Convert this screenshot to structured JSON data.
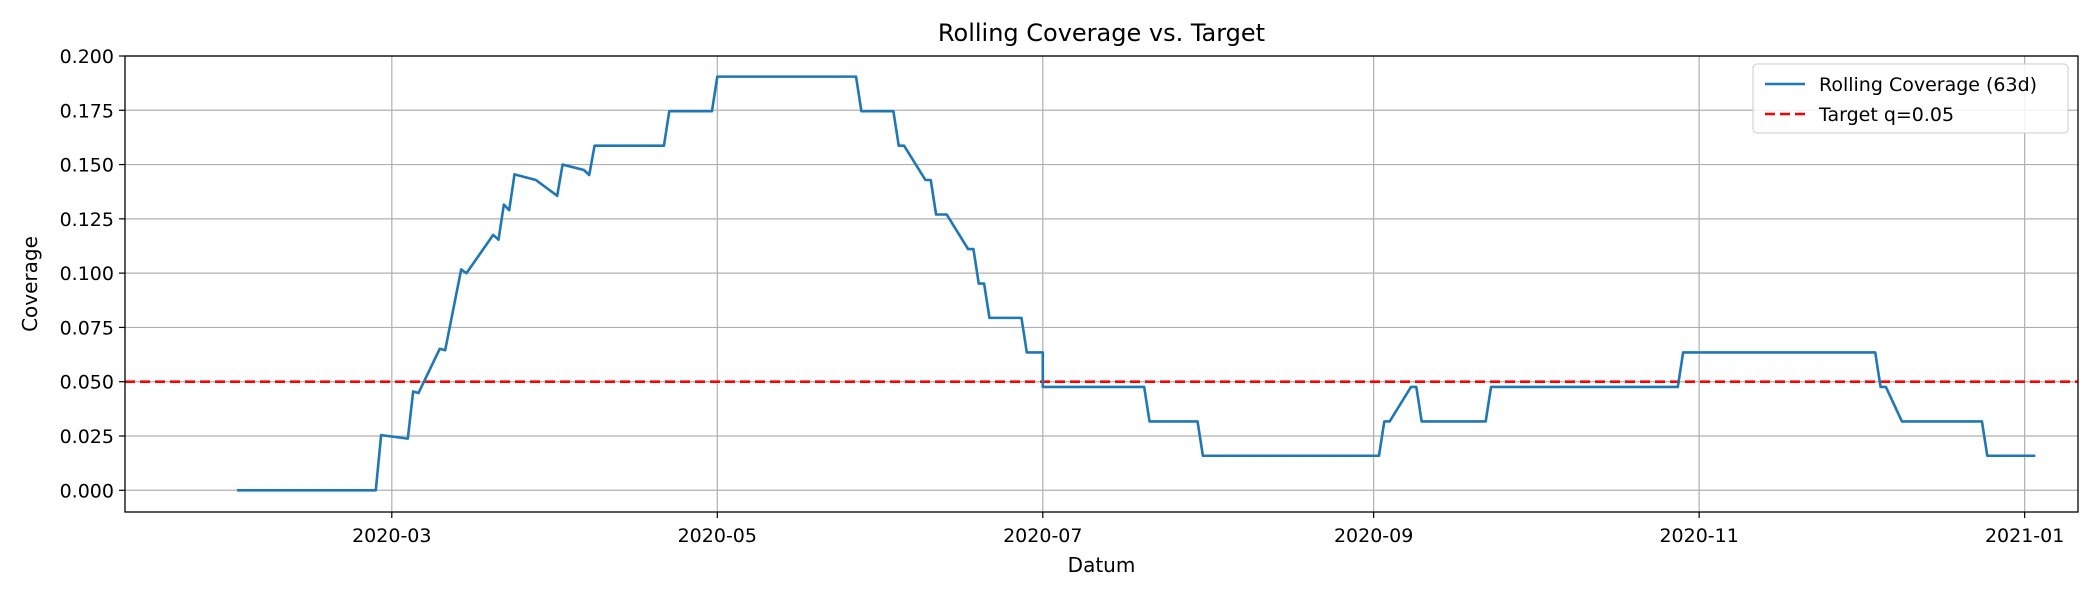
{
  "chart_data": {
    "type": "line",
    "title": "Rolling Coverage vs. Target",
    "xlabel": "Datum",
    "ylabel": "Coverage",
    "xlim": [
      "2020-01-11",
      "2021-01-11"
    ],
    "ylim": [
      -0.01,
      0.2
    ],
    "x_ticks": [
      "2020-03-01",
      "2020-05-01",
      "2020-07-01",
      "2020-09-01",
      "2020-11-01",
      "2021-01-01"
    ],
    "x_tick_labels": [
      "2020-03",
      "2020-05",
      "2020-07",
      "2020-09",
      "2020-11",
      "2021-01"
    ],
    "y_ticks": [
      0.0,
      0.025,
      0.05,
      0.075,
      0.1,
      0.125,
      0.15,
      0.175,
      0.2
    ],
    "y_tick_labels": [
      "0.000",
      "0.025",
      "0.050",
      "0.075",
      "0.100",
      "0.125",
      "0.150",
      "0.175",
      "0.200"
    ],
    "grid": true,
    "legend_position": "top-right",
    "series": [
      {
        "name": "Rolling Coverage (63d)",
        "color": "#1f77b4",
        "style": "solid",
        "points": [
          [
            "2020-02-01",
            0.0
          ],
          [
            "2020-02-27",
            0.0
          ],
          [
            "2020-02-28",
            0.0254
          ],
          [
            "2020-03-04",
            0.0238
          ],
          [
            "2020-03-05",
            0.0455
          ],
          [
            "2020-03-06",
            0.0448
          ],
          [
            "2020-03-10",
            0.0652
          ],
          [
            "2020-03-11",
            0.0645
          ],
          [
            "2020-03-14",
            0.1017
          ],
          [
            "2020-03-15",
            0.1
          ],
          [
            "2020-03-20",
            0.1176
          ],
          [
            "2020-03-21",
            0.1154
          ],
          [
            "2020-03-22",
            0.1316
          ],
          [
            "2020-03-23",
            0.129
          ],
          [
            "2020-03-24",
            0.1455
          ],
          [
            "2020-03-28",
            0.1429
          ],
          [
            "2020-04-01",
            0.1356
          ],
          [
            "2020-04-02",
            0.15
          ],
          [
            "2020-04-06",
            0.1475
          ],
          [
            "2020-04-07",
            0.1452
          ],
          [
            "2020-04-08",
            0.1587
          ],
          [
            "2020-04-21",
            0.1587
          ],
          [
            "2020-04-22",
            0.1746
          ],
          [
            "2020-04-30",
            0.1746
          ],
          [
            "2020-05-01",
            0.1905
          ],
          [
            "2020-05-27",
            0.1905
          ],
          [
            "2020-05-28",
            0.1746
          ],
          [
            "2020-06-03",
            0.1746
          ],
          [
            "2020-06-04",
            0.1587
          ],
          [
            "2020-06-05",
            0.1587
          ],
          [
            "2020-06-09",
            0.1429
          ],
          [
            "2020-06-10",
            0.1429
          ],
          [
            "2020-06-11",
            0.127
          ],
          [
            "2020-06-13",
            0.127
          ],
          [
            "2020-06-17",
            0.1111
          ],
          [
            "2020-06-18",
            0.1111
          ],
          [
            "2020-06-19",
            0.0952
          ],
          [
            "2020-06-20",
            0.0952
          ],
          [
            "2020-06-21",
            0.0794
          ],
          [
            "2020-06-27",
            0.0794
          ],
          [
            "2020-06-28",
            0.0635
          ],
          [
            "2020-07-01",
            0.0635
          ],
          [
            "2020-07-01",
            0.0476
          ],
          [
            "2020-07-20",
            0.0476
          ],
          [
            "2020-07-21",
            0.0317
          ],
          [
            "2020-07-30",
            0.0317
          ],
          [
            "2020-07-31",
            0.0159
          ],
          [
            "2020-09-02",
            0.0159
          ],
          [
            "2020-09-03",
            0.0317
          ],
          [
            "2020-09-04",
            0.0317
          ],
          [
            "2020-09-08",
            0.0476
          ],
          [
            "2020-09-09",
            0.0476
          ],
          [
            "2020-09-10",
            0.0317
          ],
          [
            "2020-09-22",
            0.0317
          ],
          [
            "2020-09-23",
            0.0476
          ],
          [
            "2020-10-28",
            0.0476
          ],
          [
            "2020-10-29",
            0.0635
          ],
          [
            "2020-12-04",
            0.0635
          ],
          [
            "2020-12-05",
            0.0476
          ],
          [
            "2020-12-06",
            0.0476
          ],
          [
            "2020-12-09",
            0.0317
          ],
          [
            "2020-12-24",
            0.0317
          ],
          [
            "2020-12-25",
            0.0159
          ],
          [
            "2021-01-03",
            0.0159
          ]
        ]
      },
      {
        "name": "Target q=0.05",
        "color": "#ff0000",
        "style": "dashed",
        "y": 0.05
      }
    ]
  }
}
